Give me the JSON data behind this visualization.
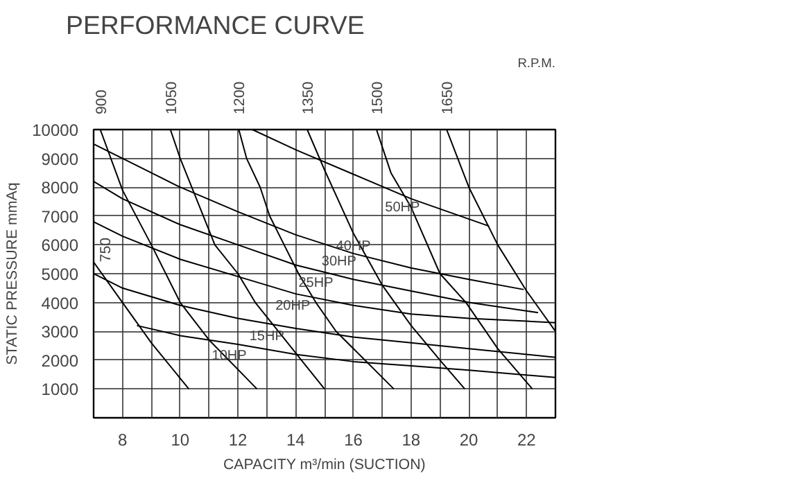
{
  "chart_data": {
    "type": "line",
    "title": "PERFORMANCE CURVE",
    "xlabel": "CAPACITY m³/min (SUCTION)",
    "ylabel": "STATIC PRESSURE mmAq",
    "xlim": [
      7,
      23
    ],
    "ylim": [
      0,
      10000
    ],
    "xticks": [
      {
        "value": 7,
        "label": null
      },
      8,
      {
        "value": 9,
        "label": null
      },
      10,
      {
        "value": 11,
        "label": null
      },
      12,
      {
        "value": 13,
        "label": null
      },
      14,
      {
        "value": 15,
        "label": null
      },
      16,
      {
        "value": 17,
        "label": null
      },
      18,
      {
        "value": 19,
        "label": null
      },
      20,
      {
        "value": 21,
        "label": null
      },
      22,
      {
        "value": 23,
        "label": null
      }
    ],
    "yticks": [
      {
        "value": 0,
        "label": null
      },
      1000,
      2000,
      3000,
      4000,
      5000,
      6000,
      7000,
      8000,
      9000,
      10000
    ],
    "grid": true,
    "marker": "none",
    "line_style": "solid",
    "series": [
      {
        "name": "750",
        "color": "#000000",
        "x": [
          7,
          8,
          9,
          10.3
        ],
        "values": [
          5400,
          4000,
          2600,
          1000
        ]
      },
      {
        "name": "900",
        "color": "#000000",
        "x": [
          7.23,
          8,
          9,
          10,
          11,
          12.66
        ],
        "values": [
          10000,
          7900,
          6000,
          4000,
          2700,
          1000
        ]
      },
      {
        "name": "1050",
        "color": "#000000",
        "x": [
          9.66,
          10,
          10.4,
          11.2,
          12,
          12.6,
          13.4,
          14.2,
          15
        ],
        "values": [
          10000,
          9000,
          8000,
          6000,
          5000,
          4000,
          3000,
          2000,
          1000
        ]
      },
      {
        "name": "1200",
        "color": "#000000",
        "x": [
          12.03,
          12.3,
          12.77,
          13.1,
          13.6,
          14.1,
          14.7,
          15.4,
          16.4,
          17.4
        ],
        "values": [
          10000,
          9000,
          8000,
          7000,
          6000,
          5000,
          4000,
          3000,
          2000,
          1000
        ]
      },
      {
        "name": "1350",
        "color": "#000000",
        "x": [
          14.4,
          15,
          16,
          17,
          18,
          19,
          19.86
        ],
        "values": [
          10000,
          8600,
          6400,
          4600,
          3200,
          2000,
          1000
        ]
      },
      {
        "name": "1500",
        "color": "#000000",
        "x": [
          16.8,
          17.3,
          18,
          19,
          19.9,
          21,
          22.2
        ],
        "values": [
          10000,
          8500,
          7300,
          5000,
          4000,
          2400,
          1000
        ]
      },
      {
        "name": "1650",
        "color": "#000000",
        "x": [
          19.23,
          20,
          21,
          22,
          23
        ],
        "values": [
          10000,
          8000,
          6000,
          4400,
          3000
        ]
      },
      {
        "color": "#000000",
        "x": [
          12.5,
          14,
          16,
          18,
          20.7
        ],
        "values": [
          10000,
          9300,
          8450,
          7600,
          6650
        ]
      },
      {
        "color": "#000000",
        "x": [
          7,
          8,
          10,
          12,
          14,
          16,
          18,
          20,
          21.9
        ],
        "values": [
          9500,
          9000,
          8000,
          7150,
          6350,
          5700,
          5200,
          4800,
          4450
        ]
      },
      {
        "color": "#000000",
        "x": [
          7,
          8,
          10,
          12,
          14,
          16,
          18,
          20,
          22.4
        ],
        "values": [
          8200,
          7600,
          6700,
          6000,
          5300,
          4800,
          4400,
          4000,
          3650
        ]
      },
      {
        "color": "#000000",
        "x": [
          7,
          8,
          10,
          12,
          14,
          16,
          18,
          20,
          23
        ],
        "values": [
          6800,
          6300,
          5500,
          4900,
          4300,
          3900,
          3600,
          3450,
          3300
        ]
      },
      {
        "color": "#000000",
        "x": [
          7,
          8,
          10,
          12,
          14,
          16,
          18,
          20,
          23
        ],
        "values": [
          5000,
          4500,
          3900,
          3450,
          3100,
          2800,
          2600,
          2400,
          2100
        ]
      },
      {
        "color": "#000000",
        "x": [
          8.5,
          10,
          12,
          14,
          16,
          18,
          20,
          23
        ],
        "values": [
          3200,
          2850,
          2550,
          2200,
          1950,
          1800,
          1650,
          1400
        ]
      }
    ],
    "annotations": [
      "R.P.M.",
      {
        "text": "50HP",
        "x": 17.7,
        "y": 7730
      },
      {
        "text": "40HP",
        "x": 16.0,
        "y": 6400
      },
      {
        "text": "30HP",
        "x": 15.5,
        "y": 5860
      },
      {
        "text": "25HP",
        "x": 14.7,
        "y": 5120
      },
      {
        "text": "20HP",
        "x": 13.9,
        "y": 4330
      },
      {
        "text": "15HP",
        "x": 13.0,
        "y": 3280
      },
      {
        "text": "10HP",
        "x": 11.7,
        "y": 2600
      }
    ]
  }
}
